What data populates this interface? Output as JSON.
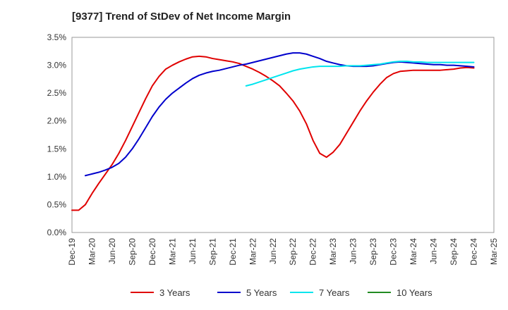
{
  "chart_data": {
    "type": "line",
    "title": "[9377]  Trend of StDev of Net Income Margin",
    "xlabel": "",
    "ylabel": "",
    "x_ticks": [
      "Dec-19",
      "Mar-20",
      "Jun-20",
      "Sep-20",
      "Dec-20",
      "Mar-21",
      "Jun-21",
      "Sep-21",
      "Dec-21",
      "Mar-22",
      "Jun-22",
      "Sep-22",
      "Dec-22",
      "Mar-23",
      "Jun-23",
      "Sep-23",
      "Dec-23",
      "Mar-24",
      "Jun-24",
      "Sep-24",
      "Dec-24",
      "Mar-25"
    ],
    "y_ticks": [
      "0.0%",
      "0.5%",
      "1.0%",
      "1.5%",
      "2.0%",
      "2.5%",
      "3.0%",
      "3.5%"
    ],
    "ylim": [
      0,
      3.5
    ],
    "y_unit": "%",
    "grid": true,
    "legend_position": "bottom",
    "series": [
      {
        "name": "3 Years",
        "color": "#e00000",
        "points": [
          [
            "Dec-19",
            0.4
          ],
          [
            "Jan-20",
            0.4
          ],
          [
            "Feb-20",
            0.5
          ],
          [
            "Mar-20",
            0.7
          ],
          [
            "Apr-20",
            0.88
          ],
          [
            "May-20",
            1.05
          ],
          [
            "Jun-20",
            1.22
          ],
          [
            "Jul-20",
            1.42
          ],
          [
            "Aug-20",
            1.65
          ],
          [
            "Sep-20",
            1.9
          ],
          [
            "Oct-20",
            2.15
          ],
          [
            "Nov-20",
            2.4
          ],
          [
            "Dec-20",
            2.63
          ],
          [
            "Jan-21",
            2.8
          ],
          [
            "Feb-21",
            2.93
          ],
          [
            "Mar-21",
            3.0
          ],
          [
            "Apr-21",
            3.06
          ],
          [
            "May-21",
            3.11
          ],
          [
            "Jun-21",
            3.15
          ],
          [
            "Jul-21",
            3.16
          ],
          [
            "Aug-21",
            3.15
          ],
          [
            "Sep-21",
            3.12
          ],
          [
            "Oct-21",
            3.1
          ],
          [
            "Nov-21",
            3.08
          ],
          [
            "Dec-21",
            3.06
          ],
          [
            "Jan-22",
            3.03
          ],
          [
            "Feb-22",
            2.98
          ],
          [
            "Mar-22",
            2.93
          ],
          [
            "Apr-22",
            2.87
          ],
          [
            "May-22",
            2.8
          ],
          [
            "Jun-22",
            2.72
          ],
          [
            "Jul-22",
            2.63
          ],
          [
            "Aug-22",
            2.5
          ],
          [
            "Sep-22",
            2.36
          ],
          [
            "Oct-22",
            2.18
          ],
          [
            "Nov-22",
            1.95
          ],
          [
            "Dec-22",
            1.65
          ],
          [
            "Jan-23",
            1.42
          ],
          [
            "Feb-23",
            1.35
          ],
          [
            "Mar-23",
            1.44
          ],
          [
            "Apr-23",
            1.58
          ],
          [
            "May-23",
            1.78
          ],
          [
            "Jun-23",
            1.98
          ],
          [
            "Jul-23",
            2.18
          ],
          [
            "Aug-23",
            2.36
          ],
          [
            "Sep-23",
            2.52
          ],
          [
            "Oct-23",
            2.66
          ],
          [
            "Nov-23",
            2.78
          ],
          [
            "Dec-23",
            2.85
          ],
          [
            "Jan-24",
            2.89
          ],
          [
            "Feb-24",
            2.9
          ],
          [
            "Mar-24",
            2.91
          ],
          [
            "Apr-24",
            2.91
          ],
          [
            "May-24",
            2.91
          ],
          [
            "Jun-24",
            2.91
          ],
          [
            "Jul-24",
            2.91
          ],
          [
            "Aug-24",
            2.92
          ],
          [
            "Sep-24",
            2.93
          ],
          [
            "Oct-24",
            2.95
          ],
          [
            "Nov-24",
            2.96
          ],
          [
            "Dec-24",
            2.95
          ]
        ]
      },
      {
        "name": "5 Years",
        "color": "#0000cc",
        "points": [
          [
            "Feb-20",
            1.02
          ],
          [
            "Mar-20",
            1.05
          ],
          [
            "Apr-20",
            1.08
          ],
          [
            "May-20",
            1.12
          ],
          [
            "Jun-20",
            1.17
          ],
          [
            "Jul-20",
            1.24
          ],
          [
            "Aug-20",
            1.35
          ],
          [
            "Sep-20",
            1.5
          ],
          [
            "Oct-20",
            1.68
          ],
          [
            "Nov-20",
            1.88
          ],
          [
            "Dec-20",
            2.08
          ],
          [
            "Jan-21",
            2.25
          ],
          [
            "Feb-21",
            2.39
          ],
          [
            "Mar-21",
            2.5
          ],
          [
            "Apr-21",
            2.59
          ],
          [
            "May-21",
            2.68
          ],
          [
            "Jun-21",
            2.76
          ],
          [
            "Jul-21",
            2.82
          ],
          [
            "Aug-21",
            2.86
          ],
          [
            "Sep-21",
            2.89
          ],
          [
            "Oct-21",
            2.91
          ],
          [
            "Nov-21",
            2.94
          ],
          [
            "Dec-21",
            2.97
          ],
          [
            "Jan-22",
            3.0
          ],
          [
            "Feb-22",
            3.02
          ],
          [
            "Mar-22",
            3.05
          ],
          [
            "Apr-22",
            3.08
          ],
          [
            "May-22",
            3.11
          ],
          [
            "Jun-22",
            3.14
          ],
          [
            "Jul-22",
            3.17
          ],
          [
            "Aug-22",
            3.2
          ],
          [
            "Sep-22",
            3.22
          ],
          [
            "Oct-22",
            3.22
          ],
          [
            "Nov-22",
            3.2
          ],
          [
            "Dec-22",
            3.16
          ],
          [
            "Jan-23",
            3.12
          ],
          [
            "Feb-23",
            3.07
          ],
          [
            "Mar-23",
            3.04
          ],
          [
            "Apr-23",
            3.01
          ],
          [
            "May-23",
            2.99
          ],
          [
            "Jun-23",
            2.98
          ],
          [
            "Jul-23",
            2.98
          ],
          [
            "Aug-23",
            2.98
          ],
          [
            "Sep-23",
            2.99
          ],
          [
            "Oct-23",
            3.01
          ],
          [
            "Nov-23",
            3.03
          ],
          [
            "Dec-23",
            3.05
          ],
          [
            "Jan-24",
            3.06
          ],
          [
            "Feb-24",
            3.05
          ],
          [
            "Mar-24",
            3.04
          ],
          [
            "Apr-24",
            3.03
          ],
          [
            "May-24",
            3.02
          ],
          [
            "Jun-24",
            3.01
          ],
          [
            "Jul-24",
            3.01
          ],
          [
            "Aug-24",
            3.0
          ],
          [
            "Sep-24",
            3.0
          ],
          [
            "Oct-24",
            2.99
          ],
          [
            "Nov-24",
            2.98
          ],
          [
            "Dec-24",
            2.97
          ]
        ]
      },
      {
        "name": "7 Years",
        "color": "#00e5ee",
        "points": [
          [
            "Feb-22",
            2.63
          ],
          [
            "Mar-22",
            2.66
          ],
          [
            "Apr-22",
            2.7
          ],
          [
            "May-22",
            2.74
          ],
          [
            "Jun-22",
            2.78
          ],
          [
            "Jul-22",
            2.82
          ],
          [
            "Aug-22",
            2.86
          ],
          [
            "Sep-22",
            2.9
          ],
          [
            "Oct-22",
            2.93
          ],
          [
            "Nov-22",
            2.95
          ],
          [
            "Dec-22",
            2.97
          ],
          [
            "Jan-23",
            2.98
          ],
          [
            "Feb-23",
            2.98
          ],
          [
            "Mar-23",
            2.98
          ],
          [
            "Apr-23",
            2.98
          ],
          [
            "May-23",
            2.99
          ],
          [
            "Jun-23",
            2.99
          ],
          [
            "Jul-23",
            2.99
          ],
          [
            "Aug-23",
            3.0
          ],
          [
            "Sep-23",
            3.01
          ],
          [
            "Oct-23",
            3.02
          ],
          [
            "Nov-23",
            3.04
          ],
          [
            "Dec-23",
            3.06
          ],
          [
            "Jan-24",
            3.07
          ],
          [
            "Feb-24",
            3.07
          ],
          [
            "Mar-24",
            3.06
          ],
          [
            "Apr-24",
            3.06
          ],
          [
            "May-24",
            3.05
          ],
          [
            "Jun-24",
            3.05
          ],
          [
            "Jul-24",
            3.05
          ],
          [
            "Aug-24",
            3.05
          ],
          [
            "Sep-24",
            3.05
          ],
          [
            "Oct-24",
            3.05
          ],
          [
            "Nov-24",
            3.05
          ],
          [
            "Dec-24",
            3.05
          ]
        ]
      },
      {
        "name": "10 Years",
        "color": "#228b22",
        "points": []
      }
    ]
  }
}
